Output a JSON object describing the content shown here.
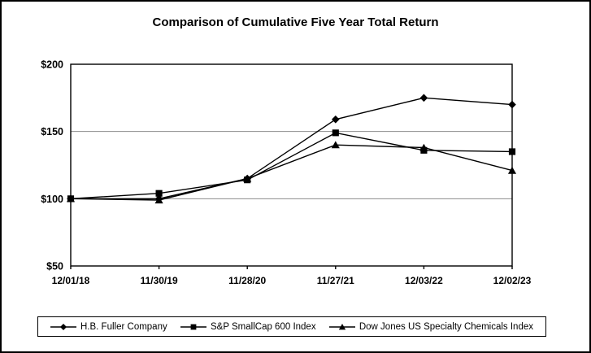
{
  "colors": {
    "series_line": "#000000",
    "gridline": "#8c8c8c",
    "plot_border": "#000000",
    "frame_border": "#000000",
    "background": "#ffffff",
    "text": "#000000"
  },
  "chart_data": {
    "type": "line",
    "title": "Comparison of Cumulative Five Year Total Return",
    "categories": [
      "12/01/18",
      "11/30/19",
      "11/28/20",
      "11/27/21",
      "12/03/22",
      "12/02/23"
    ],
    "series": [
      {
        "name": "H.B. Fuller Company",
        "marker": "diamond",
        "values": [
          100,
          100,
          115,
          159,
          175,
          170
        ]
      },
      {
        "name": "S&P SmallCap 600 Index",
        "marker": "square",
        "values": [
          100,
          104,
          114,
          149,
          136,
          135
        ]
      },
      {
        "name": "Dow Jones US Specialty Chemicals Index",
        "marker": "triangle",
        "values": [
          100,
          99,
          115,
          140,
          138,
          121
        ]
      }
    ],
    "xlabel": "",
    "ylabel": "",
    "ylim": [
      50,
      200
    ],
    "y_ticks": [
      50,
      100,
      150,
      200
    ],
    "y_tick_labels": [
      "$50",
      "$100",
      "$150",
      "$200"
    ],
    "grid": "horizontal",
    "legend_position": "bottom"
  }
}
